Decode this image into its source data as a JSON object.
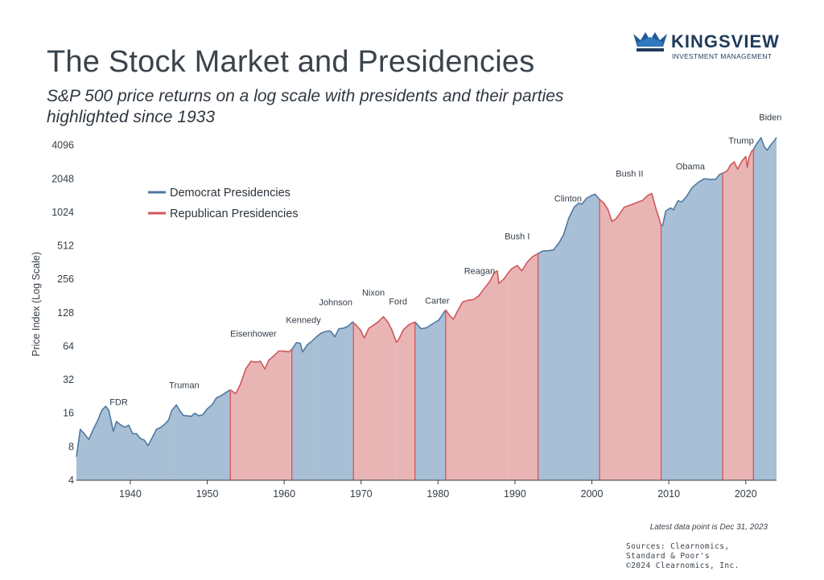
{
  "header": {
    "title": "The Stock Market and Presidencies",
    "subtitle_line1": "S&P 500 price returns on a log scale with presidents and their parties",
    "subtitle_line2": "highlighted since 1933"
  },
  "logo": {
    "name": "KINGSVIEW",
    "tagline": "INVESTMENT MANAGEMENT"
  },
  "footer": {
    "note": "Latest data point is Dec 31, 2023",
    "sources": [
      "Sources: Clearnomics,",
      "Standard & Poor's",
      "©2024 Clearnomics, Inc."
    ]
  },
  "colors": {
    "democrat_fill": "#a8bfd5",
    "democrat_line": "#4f79a3",
    "republican_fill": "#e9b4b4",
    "republican_line": "#d1575b",
    "axis": "#333d47"
  },
  "chart_data": {
    "type": "area",
    "title": "The Stock Market and Presidencies",
    "xlabel": "",
    "ylabel": "Price Index (Log Scale)",
    "y_scale": "log2",
    "xlim": [
      1933,
      2024
    ],
    "ylim": [
      4,
      4500
    ],
    "x_ticks": [
      1940,
      1950,
      1960,
      1970,
      1980,
      1990,
      2000,
      2010,
      2020
    ],
    "y_ticks": [
      4,
      8,
      16,
      32,
      64,
      128,
      256,
      512,
      1024,
      2048,
      4096
    ],
    "legend": {
      "placement": "top-left",
      "entries": [
        {
          "label": "Democrat Presidencies",
          "party": "D"
        },
        {
          "label": "Republican Presidencies",
          "party": "R"
        }
      ]
    },
    "presidencies": [
      {
        "name": "FDR",
        "party": "D",
        "start": 1933,
        "end": 1945.3
      },
      {
        "name": "Truman",
        "party": "D",
        "start": 1945.3,
        "end": 1953
      },
      {
        "name": "Eisenhower",
        "party": "R",
        "start": 1953,
        "end": 1961
      },
      {
        "name": "Kennedy",
        "party": "D",
        "start": 1961,
        "end": 1963.9
      },
      {
        "name": "Johnson",
        "party": "D",
        "start": 1963.9,
        "end": 1969
      },
      {
        "name": "Nixon",
        "party": "R",
        "start": 1969,
        "end": 1974.6
      },
      {
        "name": "Ford",
        "party": "R",
        "start": 1974.6,
        "end": 1977
      },
      {
        "name": "Carter",
        "party": "D",
        "start": 1977,
        "end": 1981
      },
      {
        "name": "Reagan",
        "party": "R",
        "start": 1981,
        "end": 1989
      },
      {
        "name": "Bush I",
        "party": "R",
        "start": 1989,
        "end": 1993
      },
      {
        "name": "Clinton",
        "party": "D",
        "start": 1993,
        "end": 2001
      },
      {
        "name": "Bush II",
        "party": "R",
        "start": 2001,
        "end": 2009
      },
      {
        "name": "Obama",
        "party": "D",
        "start": 2009,
        "end": 2017
      },
      {
        "name": "Trump",
        "party": "R",
        "start": 2017,
        "end": 2021
      },
      {
        "name": "Biden",
        "party": "D",
        "start": 2021,
        "end": 2024
      }
    ],
    "president_labels": [
      {
        "name": "FDR",
        "x": 1938.5,
        "y": 19
      },
      {
        "name": "Truman",
        "x": 1947,
        "y": 27
      },
      {
        "name": "Eisenhower",
        "x": 1956,
        "y": 78
      },
      {
        "name": "Kennedy",
        "x": 1962.5,
        "y": 104
      },
      {
        "name": "Johnson",
        "x": 1966.7,
        "y": 150
      },
      {
        "name": "Nixon",
        "x": 1971.6,
        "y": 182
      },
      {
        "name": "Ford",
        "x": 1974.8,
        "y": 152
      },
      {
        "name": "Carter",
        "x": 1979.9,
        "y": 155
      },
      {
        "name": "Reagan",
        "x": 1985.4,
        "y": 286
      },
      {
        "name": "Bush I",
        "x": 1990.3,
        "y": 585
      },
      {
        "name": "Clinton",
        "x": 1996.9,
        "y": 1280
      },
      {
        "name": "Bush II",
        "x": 2004.9,
        "y": 2150
      },
      {
        "name": "Obama",
        "x": 2012.8,
        "y": 2490
      },
      {
        "name": "Trump",
        "x": 2019.4,
        "y": 4260
      },
      {
        "name": "Biden",
        "x": 2023.2,
        "y": 6900
      }
    ],
    "series": [
      {
        "name": "S&P 500 Price Index",
        "x": [
          1933.0,
          1933.5,
          1934.0,
          1934.6,
          1935.2,
          1935.8,
          1936.3,
          1936.8,
          1937.2,
          1937.8,
          1938.2,
          1938.8,
          1939.3,
          1939.8,
          1940.3,
          1940.8,
          1941.3,
          1941.8,
          1942.3,
          1942.8,
          1943.4,
          1944.0,
          1944.6,
          1945.0,
          1945.4,
          1946.0,
          1946.4,
          1946.9,
          1947.3,
          1947.9,
          1948.4,
          1948.9,
          1949.4,
          1950.0,
          1950.6,
          1951.2,
          1951.8,
          1952.4,
          1953.0,
          1953.7,
          1954.3,
          1955.0,
          1955.7,
          1956.3,
          1956.9,
          1957.5,
          1958.0,
          1958.6,
          1959.3,
          1960.0,
          1960.6,
          1961.0,
          1961.6,
          1962.1,
          1962.4,
          1963.0,
          1963.6,
          1964.2,
          1964.8,
          1965.4,
          1966.0,
          1966.6,
          1967.1,
          1967.7,
          1968.3,
          1968.9,
          1969.3,
          1969.9,
          1970.4,
          1971.0,
          1971.6,
          1972.2,
          1972.9,
          1973.5,
          1974.0,
          1974.6,
          1974.9,
          1975.5,
          1976.2,
          1977.0,
          1977.8,
          1978.5,
          1979.3,
          1980.1,
          1980.8,
          1981.0,
          1981.5,
          1982.0,
          1982.5,
          1983.2,
          1983.9,
          1984.6,
          1985.3,
          1986.0,
          1986.7,
          1987.3,
          1987.7,
          1987.9,
          1988.6,
          1989.0,
          1989.6,
          1990.3,
          1990.9,
          1991.6,
          1992.3,
          1993.0,
          1993.6,
          1994.3,
          1995.0,
          1995.7,
          1996.3,
          1997.0,
          1997.7,
          1998.3,
          1998.7,
          1999.3,
          2000.0,
          2000.4,
          2001.0,
          2001.6,
          2002.1,
          2002.6,
          2003.1,
          2003.6,
          2004.2,
          2005.0,
          2005.8,
          2006.6,
          2007.3,
          2007.8,
          2008.3,
          2008.8,
          2009.0,
          2009.2,
          2009.6,
          2010.2,
          2010.6,
          2011.2,
          2011.7,
          2012.3,
          2013.0,
          2013.8,
          2014.6,
          2015.4,
          2016.1,
          2016.6,
          2017.0,
          2017.6,
          2018.0,
          2018.5,
          2018.95,
          2019.5,
          2020.0,
          2020.2,
          2020.4,
          2020.8,
          2021.0,
          2021.5,
          2021.99,
          2022.4,
          2022.8,
          2023.2,
          2023.6,
          2023.99
        ],
        "y": [
          6.5,
          11.5,
          10.5,
          9.3,
          11.5,
          14,
          17,
          18.5,
          17,
          11,
          13.5,
          12.5,
          12,
          12.5,
          10.5,
          10.5,
          9.5,
          9.2,
          8.2,
          9.5,
          11.5,
          12,
          13,
          14,
          17,
          19,
          17,
          15.3,
          15.2,
          15,
          16,
          15.2,
          15.5,
          17.5,
          19,
          22,
          23,
          24.5,
          26,
          24,
          29,
          40,
          47,
          46,
          47,
          40,
          48,
          52,
          58,
          58,
          57,
          60,
          69,
          68,
          57,
          66,
          71,
          78,
          84,
          87,
          88,
          78,
          92,
          93,
          97,
          106,
          100,
          90,
          76,
          93,
          99,
          106,
          118,
          105,
          90,
          69,
          74,
          90,
          100,
          106,
          92,
          94,
          102,
          110,
          130,
          136,
          121,
          112,
          131,
          160,
          166,
          168,
          182,
          211,
          243,
          293,
          305,
          235,
          260,
          285,
          320,
          340,
          305,
          365,
          410,
          436,
          459,
          462,
          470,
          540,
          640,
          910,
          1140,
          1240,
          1210,
          1370,
          1450,
          1490,
          1340,
          1230,
          1080,
          850,
          890,
          990,
          1140,
          1190,
          1250,
          1310,
          1460,
          1510,
          1120,
          870,
          780,
          780,
          1050,
          1120,
          1080,
          1300,
          1270,
          1420,
          1700,
          1900,
          2050,
          2020,
          2030,
          2240,
          2300,
          2420,
          2720,
          2910,
          2500,
          2960,
          3250,
          2600,
          3150,
          3650,
          3760,
          4300,
          4800,
          4000,
          3700,
          4100,
          4400,
          4800
        ]
      }
    ]
  }
}
